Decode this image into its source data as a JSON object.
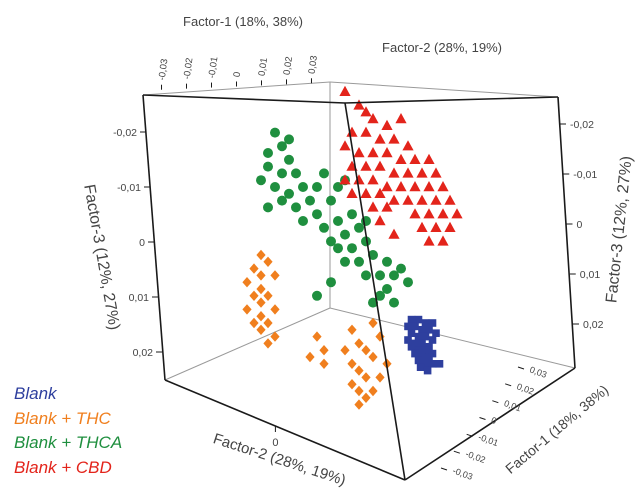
{
  "chart_data": {
    "type": "scatter",
    "projection": "3d",
    "grid": false,
    "legend_position": "bottom-left",
    "axes": {
      "top_factor1": {
        "label": "Factor-1 (18%, 38%)",
        "ticks": [
          "-0,03",
          "-0,02",
          "-0,01",
          "0",
          "0,01",
          "0,02",
          "0,03"
        ]
      },
      "top_factor2": {
        "label": "Factor-2 (28%, 19%)"
      },
      "left_factor3": {
        "label": "Factor-3 (12%, 27%)",
        "ticks": [
          "-0,02",
          "-0,01",
          "0",
          "0,01",
          "0,02"
        ]
      },
      "right_factor3": {
        "label": "Factor-3 (12%, 27%)",
        "ticks": [
          "-0,02",
          "-0,01",
          "0",
          "0,01",
          "0,02"
        ]
      },
      "bottom_factor2": {
        "label": "Factor-2 (28%, 19%)",
        "ticks": [
          "0"
        ]
      },
      "bottom_factor1": {
        "label": "Factor-1 (18%, 38%)",
        "ticks": [
          "0,03",
          "0,02",
          "0,01",
          "0",
          "-0,01",
          "-0,02",
          "-0,03"
        ]
      }
    },
    "series": [
      {
        "name": "Blank",
        "color": "#2e3f9e",
        "marker": "square",
        "points": [
          [
            0.0095,
            0.0095
          ],
          [
            0.0105,
            0.0095
          ],
          [
            0.0115,
            0.01
          ],
          [
            0.0125,
            0.01
          ],
          [
            0.009,
            0.0105
          ],
          [
            0.01,
            0.0105
          ],
          [
            0.011,
            0.011
          ],
          [
            0.012,
            0.011
          ],
          [
            0.013,
            0.0115
          ],
          [
            0.0095,
            0.0115
          ],
          [
            0.0105,
            0.012
          ],
          [
            0.0115,
            0.012
          ],
          [
            0.0125,
            0.0125
          ],
          [
            0.009,
            0.0125
          ],
          [
            0.01,
            0.013
          ],
          [
            0.011,
            0.013
          ],
          [
            0.012,
            0.0135
          ],
          [
            0.0095,
            0.0135
          ],
          [
            0.0105,
            0.014
          ],
          [
            0.0115,
            0.014
          ],
          [
            0.0125,
            0.0145
          ],
          [
            0.01,
            0.0145
          ],
          [
            0.011,
            0.015
          ],
          [
            0.012,
            0.015
          ],
          [
            0.0105,
            0.0155
          ],
          [
            0.0115,
            0.016
          ],
          [
            0.0125,
            0.016
          ],
          [
            0.0135,
            0.016
          ],
          [
            0.0108,
            0.0165
          ],
          [
            0.0118,
            0.017
          ]
        ]
      },
      {
        "name": "Blank + THC",
        "color": "#f07f1e",
        "marker": "diamond",
        "points": [
          [
            -0.012,
            0.0
          ],
          [
            -0.011,
            0.001
          ],
          [
            -0.013,
            0.002
          ],
          [
            -0.012,
            0.003
          ],
          [
            -0.01,
            0.003
          ],
          [
            -0.014,
            0.004
          ],
          [
            -0.012,
            0.005
          ],
          [
            -0.011,
            0.006
          ],
          [
            -0.013,
            0.006
          ],
          [
            -0.012,
            0.007
          ],
          [
            -0.01,
            0.008
          ],
          [
            -0.014,
            0.008
          ],
          [
            -0.012,
            0.009
          ],
          [
            -0.011,
            0.01
          ],
          [
            -0.013,
            0.01
          ],
          [
            -0.012,
            0.011
          ],
          [
            -0.01,
            0.012
          ],
          [
            -0.011,
            0.013
          ],
          [
            -0.004,
            0.012
          ],
          [
            -0.003,
            0.014
          ],
          [
            -0.005,
            0.015
          ],
          [
            -0.003,
            0.016
          ],
          [
            0.001,
            0.011
          ],
          [
            0.002,
            0.013
          ],
          [
            0.0,
            0.014
          ],
          [
            0.003,
            0.014
          ],
          [
            0.001,
            0.016
          ],
          [
            0.002,
            0.017
          ],
          [
            0.003,
            0.018
          ],
          [
            0.001,
            0.019
          ],
          [
            0.002,
            0.02
          ],
          [
            0.003,
            0.021
          ],
          [
            0.002,
            0.022
          ],
          [
            0.004,
            0.01
          ],
          [
            0.005,
            0.012
          ],
          [
            0.004,
            0.015
          ],
          [
            0.006,
            0.016
          ],
          [
            0.005,
            0.018
          ],
          [
            0.004,
            0.02
          ]
        ]
      },
      {
        "name": "Blank + THCA",
        "color": "#1f8f3f",
        "marker": "circle",
        "points": [
          [
            -0.01,
            -0.018
          ],
          [
            -0.009,
            -0.016
          ],
          [
            -0.008,
            -0.017
          ],
          [
            -0.011,
            -0.015
          ],
          [
            -0.008,
            -0.014
          ],
          [
            -0.009,
            -0.012
          ],
          [
            -0.01,
            -0.01
          ],
          [
            -0.012,
            -0.011
          ],
          [
            -0.011,
            -0.013
          ],
          [
            -0.007,
            -0.012
          ],
          [
            -0.006,
            -0.01
          ],
          [
            -0.008,
            -0.009
          ],
          [
            -0.009,
            -0.008
          ],
          [
            -0.011,
            -0.007
          ],
          [
            -0.007,
            -0.007
          ],
          [
            -0.005,
            -0.008
          ],
          [
            -0.004,
            -0.01
          ],
          [
            -0.003,
            -0.012
          ],
          [
            -0.006,
            -0.005
          ],
          [
            -0.004,
            -0.006
          ],
          [
            -0.002,
            -0.008
          ],
          [
            -0.001,
            -0.01
          ],
          [
            0.0,
            -0.011
          ],
          [
            -0.003,
            -0.004
          ],
          [
            -0.001,
            -0.005
          ],
          [
            0.001,
            -0.006
          ],
          [
            -0.002,
            -0.002
          ],
          [
            0.0,
            -0.003
          ],
          [
            0.002,
            -0.004
          ],
          [
            0.003,
            -0.005
          ],
          [
            -0.001,
            -0.001
          ],
          [
            0.001,
            -0.001
          ],
          [
            0.003,
            -0.002
          ],
          [
            0.0,
            0.001
          ],
          [
            0.002,
            0.001
          ],
          [
            0.004,
            0.0
          ],
          [
            0.003,
            0.003
          ],
          [
            0.005,
            0.003
          ],
          [
            0.006,
            0.001
          ],
          [
            0.007,
            0.003
          ],
          [
            0.008,
            0.002
          ],
          [
            0.006,
            0.005
          ],
          [
            0.005,
            0.006
          ],
          [
            0.004,
            0.007
          ],
          [
            0.007,
            0.007
          ],
          [
            -0.004,
            0.006
          ],
          [
            -0.002,
            0.004
          ],
          [
            0.009,
            0.004
          ]
        ]
      },
      {
        "name": "Blank + CBD",
        "color": "#e3241b",
        "marker": "triangle",
        "points": [
          [
            0.0,
            -0.024
          ],
          [
            0.002,
            -0.022
          ],
          [
            0.003,
            -0.021
          ],
          [
            0.004,
            -0.02
          ],
          [
            0.008,
            -0.02
          ],
          [
            0.006,
            -0.019
          ],
          [
            0.001,
            -0.018
          ],
          [
            0.003,
            -0.018
          ],
          [
            0.005,
            -0.017
          ],
          [
            0.007,
            -0.017
          ],
          [
            0.009,
            -0.016
          ],
          [
            0.0,
            -0.016
          ],
          [
            0.002,
            -0.015
          ],
          [
            0.004,
            -0.015
          ],
          [
            0.006,
            -0.015
          ],
          [
            0.008,
            -0.014
          ],
          [
            0.01,
            -0.014
          ],
          [
            0.012,
            -0.014
          ],
          [
            0.001,
            -0.013
          ],
          [
            0.003,
            -0.013
          ],
          [
            0.005,
            -0.013
          ],
          [
            0.007,
            -0.012
          ],
          [
            0.009,
            -0.012
          ],
          [
            0.011,
            -0.012
          ],
          [
            0.013,
            -0.012
          ],
          [
            0.0,
            -0.011
          ],
          [
            0.002,
            -0.011
          ],
          [
            0.004,
            -0.011
          ],
          [
            0.006,
            -0.01
          ],
          [
            0.008,
            -0.01
          ],
          [
            0.01,
            -0.01
          ],
          [
            0.012,
            -0.01
          ],
          [
            0.014,
            -0.01
          ],
          [
            0.001,
            -0.009
          ],
          [
            0.003,
            -0.009
          ],
          [
            0.005,
            -0.009
          ],
          [
            0.007,
            -0.008
          ],
          [
            0.009,
            -0.008
          ],
          [
            0.011,
            -0.008
          ],
          [
            0.013,
            -0.008
          ],
          [
            0.015,
            -0.008
          ],
          [
            0.004,
            -0.007
          ],
          [
            0.006,
            -0.007
          ],
          [
            0.01,
            -0.006
          ],
          [
            0.012,
            -0.006
          ],
          [
            0.014,
            -0.006
          ],
          [
            0.016,
            -0.006
          ],
          [
            0.005,
            -0.005
          ],
          [
            0.011,
            -0.004
          ],
          [
            0.013,
            -0.004
          ],
          [
            0.015,
            -0.004
          ],
          [
            0.007,
            -0.003
          ],
          [
            0.012,
            -0.002
          ],
          [
            0.014,
            -0.002
          ]
        ]
      }
    ]
  }
}
